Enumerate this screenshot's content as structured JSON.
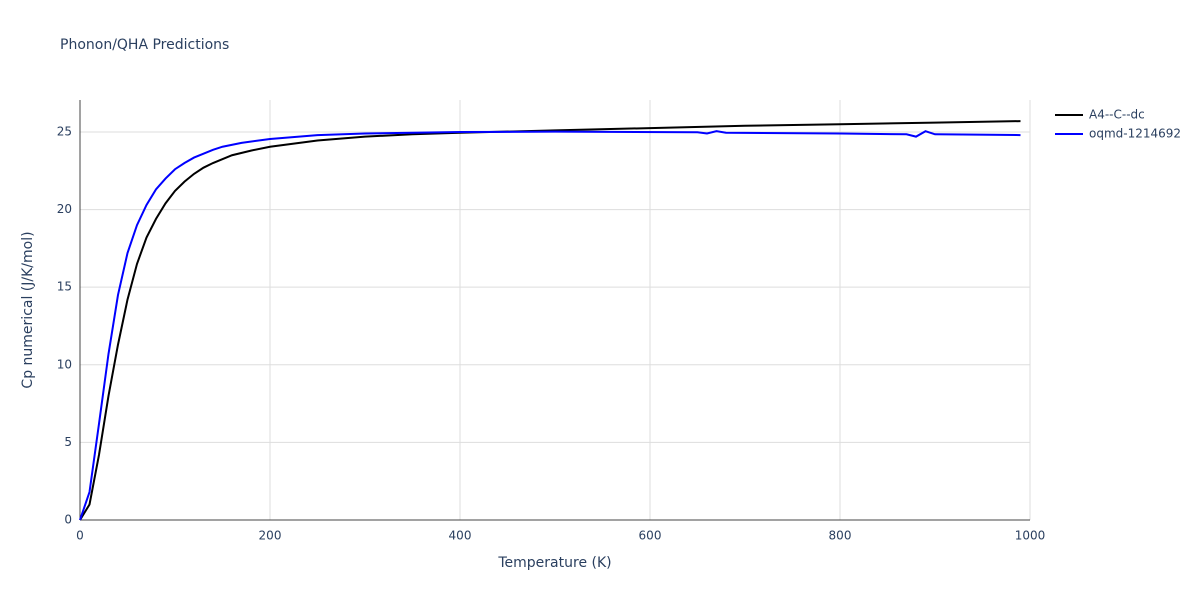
{
  "chart_data": {
    "type": "line",
    "title": "Phonon/QHA Predictions",
    "x_label": "Temperature (K)",
    "y_label": "Cp numerical (J/K/mol)",
    "xlim": [
      0,
      1000
    ],
    "xticks": [
      0,
      200,
      400,
      600,
      800,
      1000
    ],
    "ylim": [
      0,
      27.06
    ],
    "yticks": [
      0,
      5,
      10,
      15,
      20,
      25
    ],
    "grid": true,
    "legend": "outside-right",
    "series": [
      {
        "name": "A4--C--dc",
        "color": "#000000",
        "x": [
          0,
          10,
          20,
          30,
          40,
          50,
          60,
          70,
          80,
          90,
          100,
          110,
          120,
          130,
          140,
          160,
          180,
          200,
          250,
          300,
          350,
          400,
          500,
          600,
          700,
          800,
          900,
          990
        ],
        "values": [
          0,
          1,
          4.2,
          8,
          11.3,
          14.2,
          16.5,
          18.2,
          19.4,
          20.4,
          21.2,
          21.8,
          22.3,
          22.7,
          23.0,
          23.5,
          23.8,
          24.05,
          24.45,
          24.7,
          24.85,
          24.95,
          25.1,
          25.25,
          25.4,
          25.5,
          25.6,
          25.7
        ]
      },
      {
        "name": "oqmd-1214692",
        "color": "#0000ff",
        "x": [
          0,
          10,
          20,
          30,
          40,
          50,
          60,
          70,
          80,
          90,
          100,
          110,
          120,
          130,
          140,
          150,
          170,
          200,
          250,
          300,
          400,
          500,
          650,
          660,
          670,
          680,
          800,
          870,
          880,
          890,
          900,
          990
        ],
        "values": [
          0,
          1.8,
          6.2,
          10.7,
          14.5,
          17.2,
          19,
          20.3,
          21.3,
          22.0,
          22.6,
          23.0,
          23.35,
          23.6,
          23.85,
          24.05,
          24.3,
          24.55,
          24.8,
          24.9,
          25.0,
          25.02,
          24.98,
          24.9,
          25.05,
          24.95,
          24.9,
          24.85,
          24.7,
          25.05,
          24.85,
          24.8
        ]
      }
    ]
  }
}
